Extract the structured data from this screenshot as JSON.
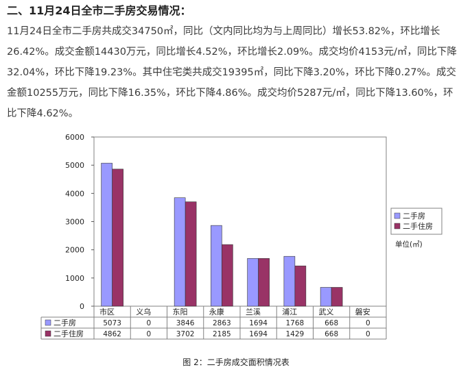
{
  "section_heading": "二、11月24日全市二手房交易情况：",
  "paragraph": "11月24日全市二手房共成交34750㎡，同比（文内同比均为与上周同比）增长53.82%，环比增长26.42%。成交金额14430万元，同比增长4.52%，环比增长2.09%。成交均价4153元/㎡，同比下降32.04%，环比下降19.23%。其中住宅类共成交19395㎡，同比下降3.20%，环比下降0.27%。成交金额10255万元，同比下降16.35%，环比下降4.86%。成交均价5287元/㎡，同比下降13.60%，环比下降4.62%。",
  "caption": "图 2：二手房成交面积情况表",
  "colors": {
    "series1": "#9999ff",
    "series2": "#993366"
  },
  "chart_data": {
    "type": "bar",
    "title": "",
    "xlabel": "",
    "ylabel": "",
    "unit_note": "单位(㎡)",
    "ylim": [
      0,
      6000
    ],
    "yticks": [
      0,
      1000,
      2000,
      3000,
      4000,
      5000,
      6000
    ],
    "categories": [
      "市区",
      "义乌",
      "东阳",
      "永康",
      "兰溪",
      "浦江",
      "武义",
      "磐安"
    ],
    "series": [
      {
        "name": "二手房",
        "values": [
          5073,
          0,
          3846,
          2863,
          1694,
          1768,
          668,
          0
        ]
      },
      {
        "name": "二手住房",
        "values": [
          4862,
          0,
          3702,
          2185,
          1694,
          1429,
          668,
          0
        ]
      }
    ],
    "legend_position": "right",
    "data_table": true,
    "grid": false
  }
}
